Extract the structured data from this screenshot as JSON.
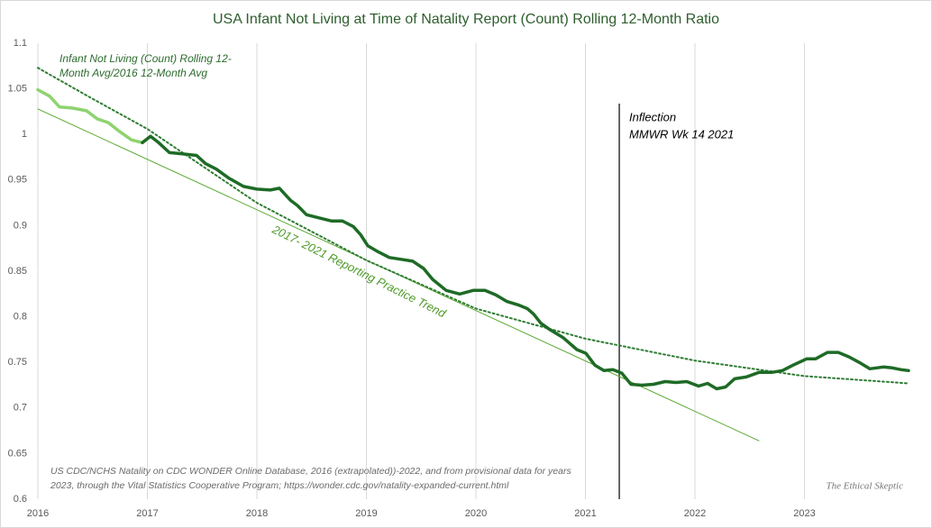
{
  "chart_data": {
    "type": "line",
    "title": "USA Infant Not Living at Time of Natality Report (Count) Rolling 12-Month Ratio",
    "xlim": [
      2016,
      2024
    ],
    "ylim": [
      0.6,
      1.1
    ],
    "xticks": [
      2016,
      2017,
      2018,
      2019,
      2020,
      2021,
      2022,
      2023
    ],
    "yticks": [
      0.6,
      0.65,
      0.7,
      0.75,
      0.8,
      0.85,
      0.9,
      0.95,
      1,
      1.05,
      1.1
    ],
    "grid": "x",
    "series": [
      {
        "color": "#8fd36f",
        "width": 3.5,
        "dash": "none",
        "x": [
          2016.0,
          2016.107,
          2016.198,
          2016.313,
          2016.444,
          2016.543,
          2016.642,
          2016.749,
          2016.856,
          2016.955
        ],
        "values": [
          1.049,
          1.042,
          1.03,
          1.029,
          1.026,
          1.017,
          1.013,
          1.003,
          0.994,
          0.991
        ]
      },
      {
        "color": "#1e6b26",
        "width": 3.5,
        "dash": "none",
        "x": [
          2016.955,
          2017.029,
          2017.103,
          2017.202,
          2017.3,
          2017.449,
          2017.531,
          2017.63,
          2017.745,
          2017.877,
          2018.0,
          2018.123,
          2018.206,
          2018.305,
          2018.37,
          2018.453,
          2018.551,
          2018.683,
          2018.782,
          2018.881,
          2018.947,
          2019.012,
          2019.111,
          2019.21,
          2019.317,
          2019.424,
          2019.523,
          2019.605,
          2019.728,
          2019.852,
          2019.975,
          2020.082,
          2020.181,
          2020.28,
          2020.387,
          2020.469,
          2020.527,
          2020.593,
          2020.675,
          2020.798,
          2020.922,
          2021.004,
          2021.086,
          2021.169,
          2021.251,
          2021.333,
          2021.416,
          2021.514,
          2021.621,
          2021.728,
          2021.827,
          2021.926,
          2022.033,
          2022.115,
          2022.198,
          2022.28,
          2022.362,
          2022.469,
          2022.584,
          2022.7,
          2022.798,
          2022.897,
          2023.021,
          2023.103,
          2023.21,
          2023.309,
          2023.407,
          2023.514,
          2023.597,
          2023.72,
          2023.802,
          2023.885,
          2023.951
        ],
        "values": [
          0.991,
          0.998,
          0.991,
          0.98,
          0.979,
          0.977,
          0.968,
          0.962,
          0.952,
          0.943,
          0.94,
          0.939,
          0.941,
          0.928,
          0.922,
          0.912,
          0.909,
          0.905,
          0.905,
          0.899,
          0.89,
          0.878,
          0.871,
          0.865,
          0.863,
          0.861,
          0.853,
          0.841,
          0.829,
          0.825,
          0.829,
          0.829,
          0.824,
          0.817,
          0.813,
          0.809,
          0.803,
          0.793,
          0.786,
          0.777,
          0.764,
          0.76,
          0.747,
          0.741,
          0.742,
          0.738,
          0.726,
          0.725,
          0.726,
          0.729,
          0.728,
          0.729,
          0.724,
          0.727,
          0.721,
          0.723,
          0.732,
          0.734,
          0.739,
          0.739,
          0.741,
          0.747,
          0.754,
          0.754,
          0.761,
          0.761,
          0.756,
          0.749,
          0.743,
          0.745,
          0.744,
          0.742,
          0.741
        ]
      },
      {
        "color": "#2e7d32",
        "width": 2,
        "dash": "2 3",
        "x": [
          2016.0,
          2016.5,
          2017.0,
          2018.0,
          2019.0,
          2020.0,
          2021.0,
          2022.0,
          2023.0,
          2023.951
        ],
        "values": [
          1.073,
          1.039,
          1.006,
          0.925,
          0.862,
          0.809,
          0.776,
          0.752,
          0.735,
          0.727
        ]
      },
      {
        "color": "#5aa832",
        "width": 1,
        "dash": "none",
        "x": [
          2016.0,
          2022.584
        ],
        "values": [
          1.028,
          0.664
        ]
      }
    ],
    "trend_label": "Infant Not Living  (Count) Rolling 12-Month Avg/2016 12-Month Avg",
    "trend_label_lines": [
      "Infant Not Living  (Count) Rolling 12-",
      "Month Avg/2016 12-Month Avg"
    ],
    "linear_label": "2017- 2021 Reporting Practice Trend",
    "inflection_x": 2021.309,
    "inflection_lines": [
      "Inflection",
      "MMWR Wk 14 2021"
    ],
    "source_lines": [
      "US CDC/NCHS Natality on CDC WONDER Online Database, 2016 (extrapolated))-2022, and from provisional data for years",
      "2023, through the Vital Statistics  Cooperative Program; https://wonder.cdc.gov/natality-expanded-current.html"
    ],
    "watermark": "The Ethical Skeptic"
  }
}
